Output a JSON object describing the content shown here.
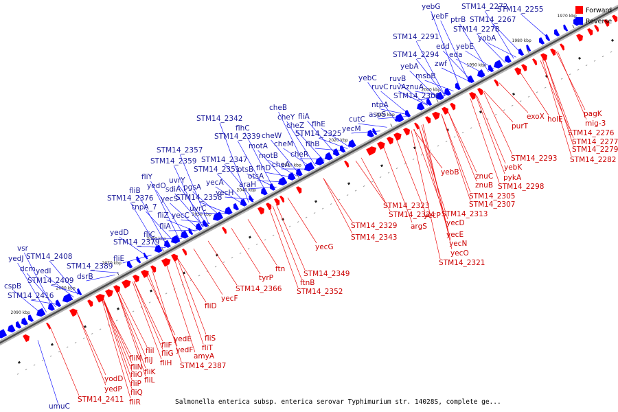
{
  "colors": {
    "forward": "#ff0000",
    "reverse": "#0000ff",
    "forward_label": "#cc0000",
    "reverse_label": "#1a1a99"
  },
  "legend": {
    "forward": "Forward",
    "reverse": "Reverse"
  },
  "footer": "Salmonella enterica subsp. enterica serovar Typhimurium str. 14028S, complete ge...",
  "ticks": [
    "2090 kbp",
    "2080 kbp",
    "2070 kbp",
    "2060 kbp",
    "2050 kbp",
    "2040 kbp",
    "2030 kbp",
    "2020 kbp",
    "2010 kbp",
    "2000 kbp",
    "1990 kbp",
    "1980 kbp",
    "1970 kbp"
  ],
  "reverse_labels": [
    "yebG",
    "STM14_2272",
    "STM14_2255",
    "yebF",
    "ptrB",
    "STM14_2267",
    "STM14_2278",
    "yobA",
    "edd",
    "yebE",
    "eda",
    "STM14_2291",
    "STM14_2294",
    "zwf",
    "yebA",
    "msbB",
    "ruvB",
    "ruvA",
    "znuA",
    "yebC",
    "ruvC",
    "STM14_2306",
    "ntpA",
    "aspS",
    "cutC",
    "yecM",
    "cheB",
    "cheY",
    "fliA",
    "cheZ",
    "flhE",
    "STM14_2342",
    "flhC",
    "STM14_2325",
    "STM14_2339",
    "cheW",
    "cheM",
    "flhB",
    "motA",
    "cheR",
    "motB",
    "cheA",
    "STM14_2357",
    "STM14_2347",
    "otsB",
    "flhD",
    "STM14_2359",
    "STM14_2351",
    "otsA",
    "uvrY",
    "yecA",
    "araH",
    "fliY",
    "sdiA",
    "pgsA",
    "yecH",
    "yedO",
    "fliB",
    "yecS",
    "STM14_2358",
    "STM14_2376",
    "tnpA_7",
    "uvrC",
    "fliZ",
    "yecC",
    "fliA",
    "yedD",
    "fliC",
    "STM14_2379",
    "vsr",
    "STM14_2408",
    "fliE",
    "yedJ",
    "dcm",
    "yedI",
    "STM14_2389",
    "STM14_2409",
    "dsrB",
    "cspB",
    "STM14_2416",
    "umuC"
  ],
  "forward_labels": [
    "pagK",
    "exoX",
    "holE",
    "mig-3",
    "purT",
    "STM14_2276",
    "STM14_2277",
    "STM14_2279",
    "STM14_2293",
    "STM14_2282",
    "yebK",
    "znuC",
    "pykA",
    "yebB",
    "znuB",
    "STM14_2298",
    "STM14_2305",
    "STM14_2307",
    "STM14_2323",
    "STM14_2313",
    "STM14_2324",
    "yecP",
    "yecD",
    "argS",
    "yecE",
    "yecN",
    "STM14_2329",
    "yecO",
    "STM14_2321",
    "STM14_2343",
    "yecG",
    "STM14_2349",
    "ftn",
    "tyrP",
    "ftnB",
    "STM14_2366",
    "STM14_2352",
    "yecF",
    "fliD",
    "fliS",
    "fliT",
    "yedE",
    "amyA",
    "yedF",
    "fliF",
    "STM14_2387",
    "fliG",
    "fliI",
    "fliM",
    "fliH",
    "fliJ",
    "fliN",
    "fliK",
    "yodD",
    "fliO",
    "fliL",
    "fliP",
    "yedP",
    "fliQ",
    "STM14_2411",
    "fliR"
  ]
}
